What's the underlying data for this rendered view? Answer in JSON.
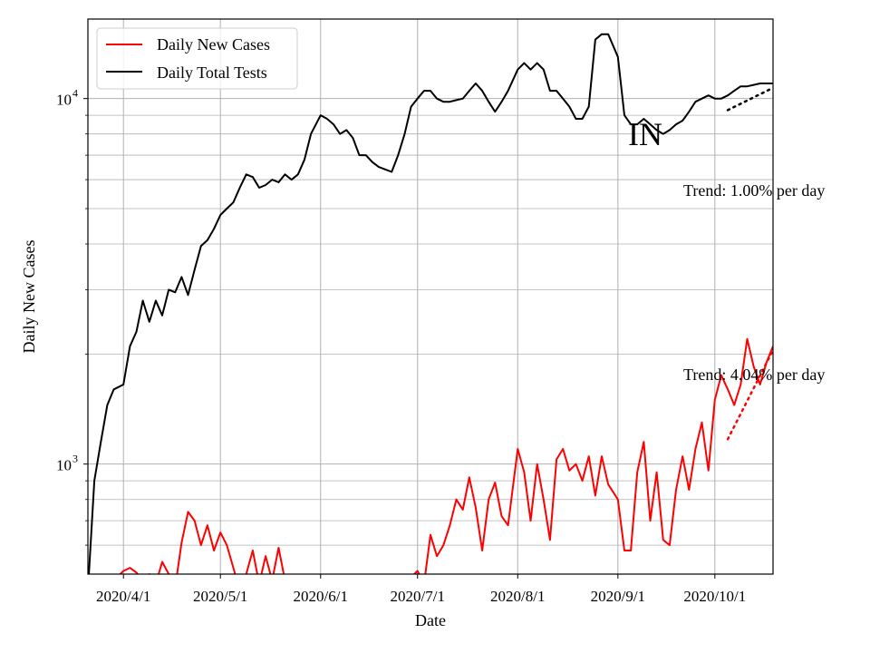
{
  "chart_data": {
    "type": "line",
    "title": "",
    "xlabel": "Date",
    "ylabel": "Daily New Cases",
    "y_scale": "log",
    "ylim": [
      500,
      16500
    ],
    "xlim": [
      "2020-03-21",
      "2020-10-19"
    ],
    "grid": true,
    "legend_position": "top-left",
    "x_ticks": [
      "2020/4/1",
      "2020/5/1",
      "2020/6/1",
      "2020/7/1",
      "2020/8/1",
      "2020/9/1",
      "2020/10/1"
    ],
    "y_ticks": [
      {
        "value": 1000,
        "label_base": "10",
        "label_exp": "3"
      },
      {
        "value": 10000,
        "label_base": "10",
        "label_exp": "4"
      }
    ],
    "region_label": "IN",
    "annotations": [
      "Trend: 1.00% per day",
      "Trend: 4.04% per day"
    ],
    "series": [
      {
        "name": "Daily New Cases",
        "color": "#ff0000",
        "style": "solid",
        "x": [
          "2020-03-21",
          "2020-03-23",
          "2020-03-25",
          "2020-03-27",
          "2020-03-29",
          "2020-04-01",
          "2020-04-03",
          "2020-04-05",
          "2020-04-07",
          "2020-04-09",
          "2020-04-11",
          "2020-04-13",
          "2020-04-15",
          "2020-04-17",
          "2020-04-19",
          "2020-04-21",
          "2020-04-23",
          "2020-04-25",
          "2020-04-27",
          "2020-04-29",
          "2020-05-01",
          "2020-05-03",
          "2020-05-05",
          "2020-05-07",
          "2020-05-09",
          "2020-05-11",
          "2020-05-13",
          "2020-05-15",
          "2020-05-17",
          "2020-05-19",
          "2020-05-21",
          "2020-05-23",
          "2020-05-25",
          "2020-05-27",
          "2020-05-29",
          "2020-06-01",
          "2020-06-05",
          "2020-06-10",
          "2020-06-15",
          "2020-06-20",
          "2020-06-25",
          "2020-06-29",
          "2020-07-01",
          "2020-07-03",
          "2020-07-05",
          "2020-07-07",
          "2020-07-09",
          "2020-07-11",
          "2020-07-13",
          "2020-07-15",
          "2020-07-17",
          "2020-07-19",
          "2020-07-21",
          "2020-07-23",
          "2020-07-25",
          "2020-07-27",
          "2020-07-29",
          "2020-08-01",
          "2020-08-03",
          "2020-08-05",
          "2020-08-07",
          "2020-08-09",
          "2020-08-11",
          "2020-08-13",
          "2020-08-15",
          "2020-08-17",
          "2020-08-19",
          "2020-08-21",
          "2020-08-23",
          "2020-08-25",
          "2020-08-27",
          "2020-08-29",
          "2020-09-01",
          "2020-09-03",
          "2020-09-05",
          "2020-09-07",
          "2020-09-09",
          "2020-09-11",
          "2020-09-13",
          "2020-09-15",
          "2020-09-17",
          "2020-09-19",
          "2020-09-21",
          "2020-09-23",
          "2020-09-25",
          "2020-09-27",
          "2020-09-29",
          "2020-10-01",
          "2020-10-03",
          "2020-10-05",
          "2020-10-07",
          "2020-10-09",
          "2020-10-11",
          "2020-10-13",
          "2020-10-15",
          "2020-10-17",
          "2020-10-19"
        ],
        "y": [
          460,
          450,
          460,
          470,
          480,
          510,
          520,
          505,
          480,
          500,
          470,
          540,
          500,
          460,
          610,
          740,
          700,
          600,
          680,
          580,
          650,
          600,
          520,
          450,
          500,
          580,
          470,
          560,
          480,
          590,
          480,
          450,
          470,
          480,
          470,
          460,
          460,
          470,
          480,
          480,
          470,
          490,
          510,
          470,
          640,
          560,
          600,
          680,
          800,
          750,
          920,
          760,
          580,
          800,
          890,
          720,
          680,
          1100,
          950,
          700,
          1000,
          800,
          620,
          1030,
          1100,
          960,
          1000,
          900,
          1050,
          820,
          1050,
          880,
          800,
          580,
          580,
          950,
          1150,
          700,
          950,
          620,
          600,
          850,
          1050,
          850,
          1100,
          1300,
          960,
          1500,
          1750,
          1600,
          1450,
          1650,
          2200,
          1850,
          1650,
          1900,
          2100
        ]
      },
      {
        "name": "Daily Total Tests",
        "color": "#000000",
        "style": "solid",
        "x": [
          "2020-03-21",
          "2020-03-23",
          "2020-03-25",
          "2020-03-27",
          "2020-03-29",
          "2020-04-01",
          "2020-04-03",
          "2020-04-05",
          "2020-04-07",
          "2020-04-09",
          "2020-04-11",
          "2020-04-13",
          "2020-04-15",
          "2020-04-17",
          "2020-04-19",
          "2020-04-21",
          "2020-04-23",
          "2020-04-25",
          "2020-04-27",
          "2020-04-29",
          "2020-05-01",
          "2020-05-03",
          "2020-05-05",
          "2020-05-07",
          "2020-05-09",
          "2020-05-11",
          "2020-05-13",
          "2020-05-15",
          "2020-05-17",
          "2020-05-19",
          "2020-05-21",
          "2020-05-23",
          "2020-05-25",
          "2020-05-27",
          "2020-05-29",
          "2020-06-01",
          "2020-06-03",
          "2020-06-05",
          "2020-06-07",
          "2020-06-09",
          "2020-06-11",
          "2020-06-13",
          "2020-06-15",
          "2020-06-17",
          "2020-06-19",
          "2020-06-21",
          "2020-06-23",
          "2020-06-25",
          "2020-06-27",
          "2020-06-29",
          "2020-07-01",
          "2020-07-03",
          "2020-07-05",
          "2020-07-07",
          "2020-07-09",
          "2020-07-11",
          "2020-07-13",
          "2020-07-15",
          "2020-07-17",
          "2020-07-19",
          "2020-07-21",
          "2020-07-23",
          "2020-07-25",
          "2020-07-27",
          "2020-07-29",
          "2020-08-01",
          "2020-08-03",
          "2020-08-05",
          "2020-08-07",
          "2020-08-09",
          "2020-08-11",
          "2020-08-13",
          "2020-08-15",
          "2020-08-17",
          "2020-08-19",
          "2020-08-21",
          "2020-08-23",
          "2020-08-25",
          "2020-08-27",
          "2020-08-29",
          "2020-09-01",
          "2020-09-03",
          "2020-09-05",
          "2020-09-07",
          "2020-09-09",
          "2020-09-11",
          "2020-09-13",
          "2020-09-15",
          "2020-09-17",
          "2020-09-19",
          "2020-09-21",
          "2020-09-23",
          "2020-09-25",
          "2020-09-27",
          "2020-09-29",
          "2020-10-01",
          "2020-10-03",
          "2020-10-05",
          "2020-10-07",
          "2020-10-09",
          "2020-10-11",
          "2020-10-13",
          "2020-10-15",
          "2020-10-17",
          "2020-10-19"
        ],
        "y": [
          450,
          900,
          1150,
          1450,
          1600,
          1650,
          2100,
          2300,
          2800,
          2450,
          2800,
          2550,
          3000,
          2950,
          3250,
          2900,
          3400,
          3950,
          4100,
          4400,
          4800,
          5000,
          5200,
          5700,
          6200,
          6100,
          5700,
          5800,
          6000,
          5900,
          6200,
          6000,
          6200,
          6800,
          8000,
          9000,
          8800,
          8500,
          8000,
          8200,
          7800,
          7000,
          7000,
          6700,
          6500,
          6400,
          6300,
          7000,
          8000,
          9500,
          10000,
          10500,
          10500,
          10000,
          9800,
          9800,
          9900,
          10000,
          10500,
          11000,
          10500,
          9800,
          9200,
          9800,
          10500,
          12000,
          12500,
          12000,
          12500,
          12000,
          10500,
          10500,
          10000,
          9500,
          8800,
          8800,
          9500,
          14500,
          15000,
          15000,
          13000,
          9000,
          8500,
          8500,
          8800,
          8500,
          8200,
          8000,
          8200,
          8500,
          8700,
          9200,
          9800,
          10000,
          10200,
          10000,
          10000,
          10200,
          10500,
          10800,
          10800,
          10900,
          11000,
          11000,
          11000
        ]
      },
      {
        "name": "",
        "color": "#000000",
        "style": "dotted",
        "x": [
          "2020-10-05",
          "2020-10-19"
        ],
        "y": [
          9300,
          10700
        ]
      },
      {
        "name": "",
        "color": "#ff0000",
        "style": "dotted",
        "x": [
          "2020-10-05",
          "2020-10-19"
        ],
        "y": [
          1170,
          2050
        ]
      }
    ]
  }
}
